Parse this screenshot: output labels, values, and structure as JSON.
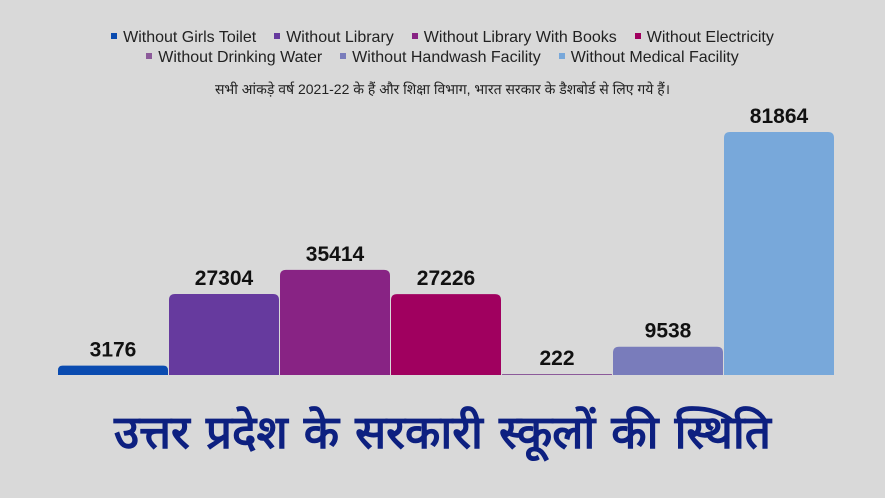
{
  "chart_data": {
    "type": "bar",
    "title": "उत्तर प्रदेश के सरकारी स्कूलों की स्थिति",
    "subtitle": "सभी आंकड़े वर्ष 2021-22 के हैं और शिक्षा विभाग, भारत सरकार के डैशबोर्ड से लिए गये हैं।",
    "categories": [
      "Without Girls Toilet",
      "Without Library",
      "Without Library With Books",
      "Without Electricity",
      "Without Drinking Water",
      "Without Handwash Facility",
      "Without Medical Facility"
    ],
    "values": [
      3176,
      27304,
      35414,
      27226,
      222,
      9538,
      81864
    ],
    "colors": [
      "#0a4bb0",
      "#663a9e",
      "#882384",
      "#a0005f",
      "#8c5a9a",
      "#797cbb",
      "#78a8da"
    ],
    "legend_placement": "top",
    "grid": false,
    "ylim": [
      0,
      81864
    ]
  }
}
